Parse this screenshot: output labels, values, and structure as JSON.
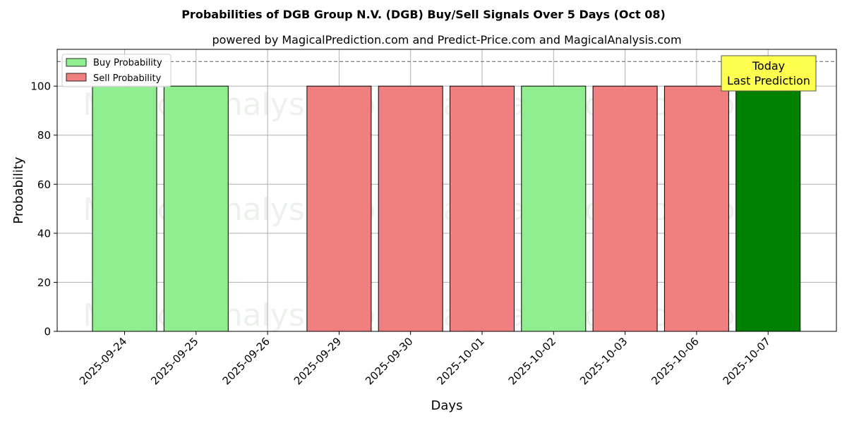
{
  "chart_data": {
    "type": "bar",
    "title": "Probabilities of DGB Group N.V. (DGB) Buy/Sell Signals Over 5 Days (Oct 08)",
    "subtitle": "powered by MagicalPrediction.com and Predict-Price.com and MagicalAnalysis.com",
    "xlabel": "Days",
    "ylabel": "Probability",
    "ylim": [
      0,
      115
    ],
    "yticks": [
      0,
      20,
      40,
      60,
      80,
      100
    ],
    "grid": true,
    "categories": [
      "2025-09-24",
      "2025-09-25",
      "2025-09-26",
      "2025-09-29",
      "2025-09-30",
      "2025-10-01",
      "2025-10-02",
      "2025-10-03",
      "2025-10-06",
      "2025-10-07"
    ],
    "series": [
      {
        "name": "Buy Probability",
        "color": "#90ee90",
        "values": [
          100,
          100,
          0,
          0,
          0,
          0,
          100,
          0,
          0,
          100
        ]
      },
      {
        "name": "Sell Probability",
        "color": "#f08080",
        "values": [
          0,
          0,
          0,
          100,
          100,
          100,
          0,
          100,
          100,
          0
        ]
      }
    ],
    "highlight": {
      "category": "2025-10-07",
      "color": "#008000"
    },
    "reference_line": {
      "y": 110,
      "style": "dashed",
      "color": "#808080"
    },
    "legend": {
      "placement": "top-left"
    },
    "annotation": {
      "lines": [
        "Today",
        "Last Prediction"
      ],
      "background": "#ffff4d"
    },
    "watermarks": [
      "MagicalAnalysis.com",
      "MagicalPrediction.com"
    ]
  }
}
